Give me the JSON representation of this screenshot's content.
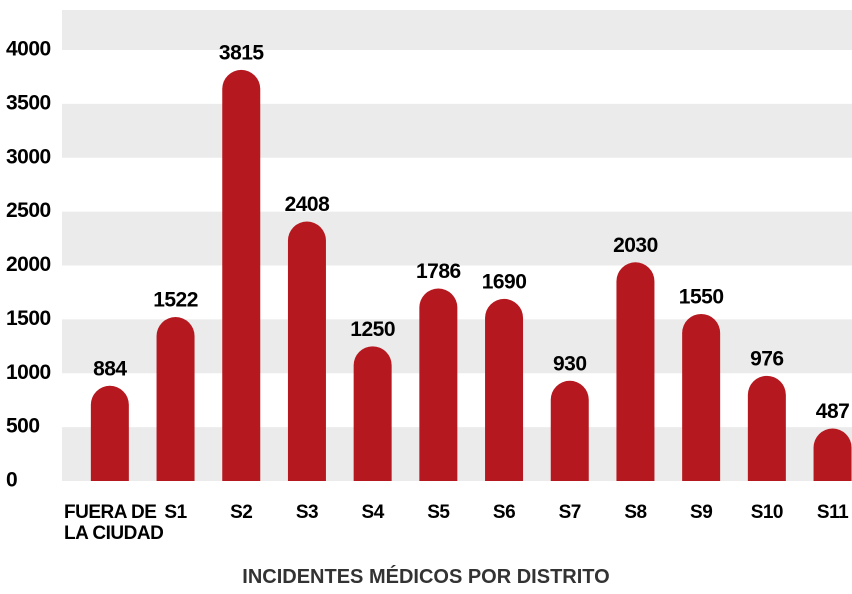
{
  "chart_data": {
    "type": "bar",
    "title": "INCIDENTES MÉDICOS POR DISTRITO",
    "categories": [
      "FUERA DE LA CIUDAD",
      "S1",
      "S2",
      "S3",
      "S4",
      "S5",
      "S6",
      "S7",
      "S8",
      "S9",
      "S10",
      "S11"
    ],
    "values": [
      884,
      1522,
      3815,
      2408,
      1250,
      1786,
      1690,
      930,
      2030,
      1550,
      976,
      487
    ],
    "color": "#b5191f",
    "ylim": [
      0,
      4000
    ],
    "yticks": [
      0,
      500,
      1000,
      1500,
      2000,
      2500,
      3000,
      3500,
      4000
    ],
    "grid": true
  }
}
